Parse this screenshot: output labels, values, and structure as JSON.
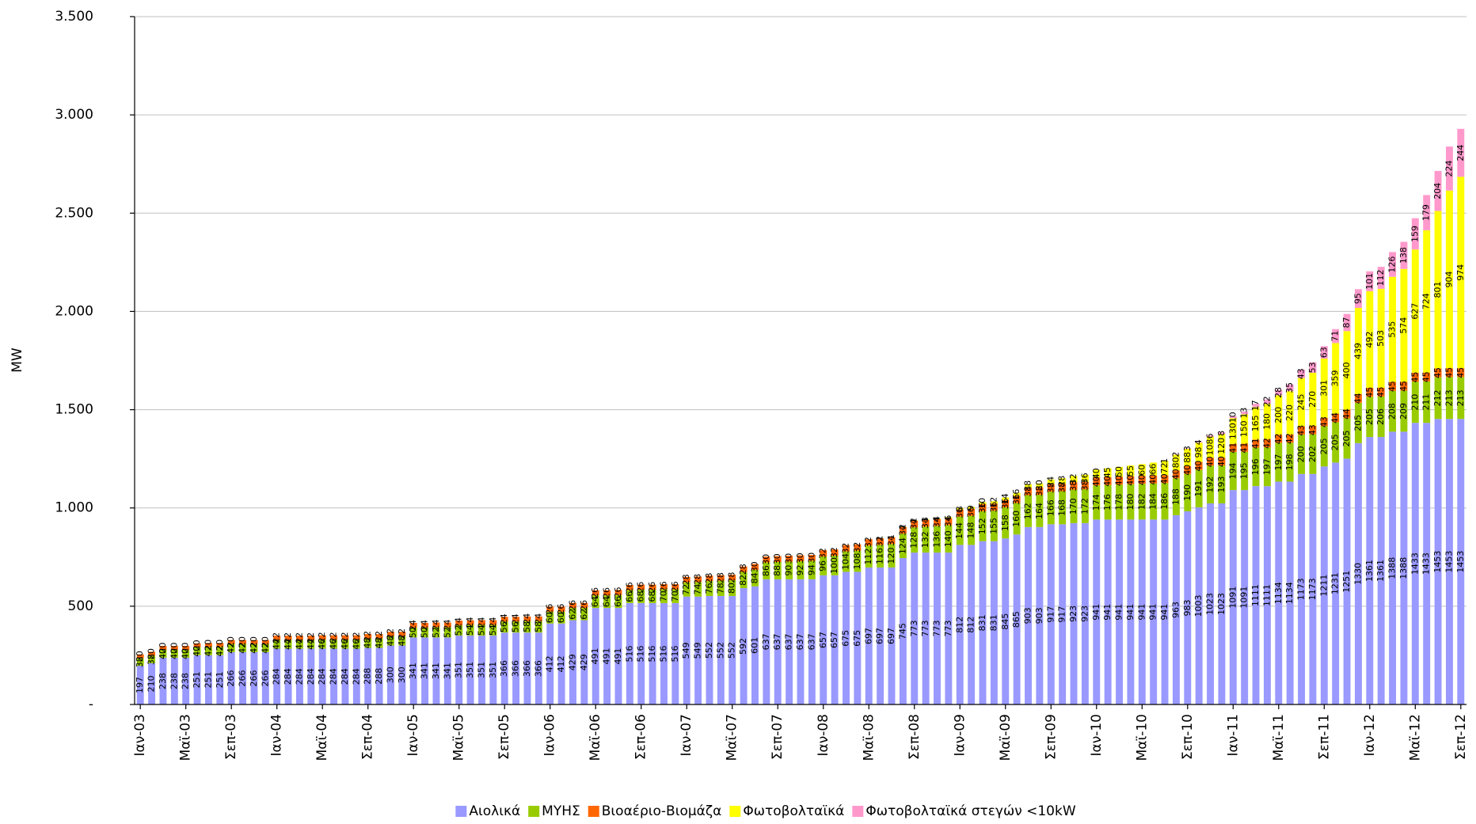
{
  "chart_data": {
    "type": "stacked-bar",
    "y_label": "MW",
    "ylim": [
      0,
      3500
    ],
    "yticks": [
      {
        "value": 0,
        "label": "-"
      },
      500,
      {
        "value": 1000,
        "label": "1.000"
      },
      {
        "value": 1500,
        "label": "1.500"
      },
      {
        "value": 2000,
        "label": "2.000"
      },
      {
        "value": 2500,
        "label": "2.500"
      },
      {
        "value": 3000,
        "label": "3.000"
      },
      {
        "value": 3500,
        "label": "3.500"
      }
    ],
    "grid": true,
    "legend": "bottom",
    "categories": [
      "Ιαν-03",
      null,
      null,
      null,
      "Μαϊ-03",
      null,
      null,
      null,
      "Σεπ-03",
      null,
      null,
      null,
      "Ιαν-04",
      null,
      null,
      null,
      "Μαϊ-04",
      null,
      null,
      null,
      "Σεπ-04",
      null,
      null,
      null,
      "Ιαν-05",
      null,
      null,
      null,
      "Μαϊ-05",
      null,
      null,
      null,
      "Σεπ-05",
      null,
      null,
      null,
      "Ιαν-06",
      null,
      null,
      null,
      "Μαϊ-06",
      null,
      null,
      null,
      "Σεπ-06",
      null,
      null,
      null,
      "Ιαν-07",
      null,
      null,
      null,
      "Μαϊ-07",
      null,
      null,
      null,
      "Σεπ-07",
      null,
      null,
      null,
      "Ιαν-08",
      null,
      null,
      null,
      "Μαϊ-08",
      null,
      null,
      null,
      "Σεπ-08",
      null,
      null,
      null,
      "Ιαν-09",
      null,
      null,
      null,
      "Μαϊ-09",
      null,
      null,
      null,
      "Σεπ-09",
      null,
      null,
      null,
      "Ιαν-10",
      null,
      null,
      null,
      "Μαϊ-10",
      null,
      null,
      null,
      "Σεπ-10",
      null,
      null,
      null,
      "Ιαν-11",
      null,
      null,
      null,
      "Μαϊ-11",
      null,
      null,
      null,
      "Σεπ-11",
      null,
      null,
      null,
      "Ιαν-12",
      null,
      null,
      null,
      "Μαϊ-12",
      null,
      null,
      null,
      "Σεπ-12"
    ],
    "series": [
      {
        "name": "Αιολικά",
        "color": "#9999ff",
        "values": [
          197,
          210,
          238,
          238,
          238,
          251,
          251,
          251,
          266,
          266,
          266,
          266,
          284,
          284,
          284,
          284,
          284,
          284,
          284,
          284,
          288,
          288,
          300,
          300,
          341,
          341,
          341,
          341,
          351,
          351,
          351,
          351,
          366,
          366,
          366,
          366,
          412,
          412,
          429,
          429,
          491,
          491,
          491,
          516,
          516,
          516,
          516,
          516,
          549,
          549,
          552,
          552,
          552,
          592,
          601,
          637,
          637,
          637,
          637,
          637,
          657,
          657,
          675,
          675,
          697,
          697,
          697,
          745,
          773,
          773,
          773,
          773,
          812,
          812,
          831,
          831,
          845,
          865,
          903,
          903,
          917,
          917,
          923,
          923,
          941,
          941,
          941,
          941,
          941,
          941,
          941,
          963,
          983,
          1003,
          1023,
          1023,
          1091,
          1091,
          1111,
          1111,
          1134,
          1134,
          1173,
          1173,
          1211,
          1231,
          1251,
          1330,
          1361,
          1361,
          1388,
          1388,
          1433,
          1433,
          1453,
          1453,
          1453
        ]
      },
      {
        "name": "ΜΥΗΣ",
        "color": "#99cc00",
        "values": [
          38,
          38,
          40,
          40,
          40,
          40,
          42,
          42,
          42,
          42,
          42,
          42,
          44,
          44,
          44,
          44,
          46,
          46,
          46,
          46,
          48,
          48,
          48,
          48,
          50,
          50,
          52,
          52,
          52,
          54,
          54,
          54,
          56,
          56,
          58,
          58,
          60,
          60,
          62,
          62,
          64,
          64,
          66,
          66,
          68,
          68,
          70,
          70,
          72,
          74,
          76,
          78,
          80,
          82,
          84,
          86,
          88,
          90,
          92,
          94,
          96,
          100,
          104,
          108,
          112,
          116,
          120,
          124,
          128,
          132,
          136,
          140,
          144,
          148,
          152,
          155,
          158,
          160,
          162,
          164,
          166,
          168,
          170,
          172,
          174,
          176,
          178,
          180,
          182,
          184,
          186,
          188,
          190,
          191,
          192,
          193,
          194,
          195,
          196,
          197,
          197,
          198,
          200,
          202,
          205,
          205,
          205,
          205,
          205,
          206,
          208,
          209,
          210,
          211,
          212,
          213,
          213
        ]
      },
      {
        "name": "Βιοαέριο-Βιομάζα",
        "color": "#ff6600",
        "values": [
          20,
          20,
          20,
          20,
          20,
          20,
          20,
          20,
          20,
          20,
          20,
          20,
          22,
          22,
          22,
          22,
          22,
          22,
          22,
          22,
          22,
          22,
          22,
          22,
          24,
          24,
          24,
          24,
          24,
          24,
          24,
          24,
          24,
          24,
          24,
          24,
          26,
          26,
          26,
          26,
          26,
          26,
          26,
          26,
          26,
          26,
          26,
          26,
          28,
          28,
          28,
          28,
          28,
          28,
          30,
          30,
          30,
          30,
          30,
          30,
          32,
          32,
          32,
          32,
          32,
          32,
          34,
          34,
          34,
          34,
          34,
          34,
          36,
          36,
          36,
          36,
          36,
          36,
          38,
          38,
          38,
          38,
          38,
          38,
          40,
          40,
          40,
          40,
          40,
          40,
          40,
          40,
          40,
          40,
          40,
          40,
          41,
          41,
          41,
          42,
          42,
          42,
          43,
          43,
          43,
          44,
          44,
          44,
          45,
          45,
          45,
          45,
          45,
          45,
          45,
          45,
          45
        ]
      },
      {
        "name": "Φωτοβολταϊκά",
        "color": "#ffff00",
        "values": [
          0,
          0,
          0,
          0,
          0,
          0,
          0,
          0,
          0,
          0,
          0,
          0,
          0,
          0,
          0,
          0,
          0,
          0,
          0,
          0,
          0,
          0,
          0,
          0,
          0,
          0,
          0,
          0,
          0,
          0,
          0,
          0,
          0,
          0,
          0,
          0,
          0,
          0,
          0,
          0,
          0,
          0,
          0,
          0,
          0,
          0,
          0,
          0,
          0,
          0,
          0,
          0,
          0,
          0,
          0,
          0,
          0,
          0,
          0,
          0,
          0,
          0,
          0,
          0,
          0,
          1,
          1,
          2,
          2,
          3,
          4,
          6,
          8,
          9,
          10,
          12,
          14,
          16,
          18,
          20,
          24,
          28,
          32,
          36,
          40,
          45,
          50,
          55,
          60,
          66,
          72,
          80,
          88,
          98,
          108,
          120,
          130,
          150,
          165,
          180,
          200,
          220,
          245,
          270,
          301,
          359,
          400,
          439,
          492,
          503,
          535,
          574,
          627,
          724,
          801,
          904,
          974
        ]
      },
      {
        "name": "Φωτοβολταϊκά στεγών <10kW",
        "color": "#ff99cc",
        "values": [
          0,
          0,
          0,
          0,
          0,
          0,
          0,
          0,
          0,
          0,
          0,
          0,
          0,
          0,
          0,
          0,
          0,
          0,
          0,
          0,
          0,
          0,
          0,
          0,
          0,
          0,
          0,
          0,
          0,
          0,
          0,
          0,
          0,
          0,
          0,
          0,
          0,
          0,
          0,
          0,
          0,
          0,
          0,
          0,
          0,
          0,
          0,
          0,
          0,
          0,
          0,
          0,
          0,
          0,
          0,
          0,
          0,
          0,
          0,
          0,
          0,
          0,
          0,
          0,
          0,
          0,
          0,
          0,
          0,
          0,
          0,
          0,
          0,
          0,
          0,
          0,
          0,
          0,
          0,
          0,
          0,
          0,
          0,
          0,
          0,
          0,
          0,
          0,
          0,
          0,
          1,
          2,
          3,
          4,
          6,
          8,
          10,
          13,
          17,
          22,
          28,
          35,
          43,
          53,
          63,
          71,
          87,
          95,
          101,
          112,
          126,
          138,
          159,
          179,
          204,
          224,
          244
        ]
      }
    ]
  }
}
